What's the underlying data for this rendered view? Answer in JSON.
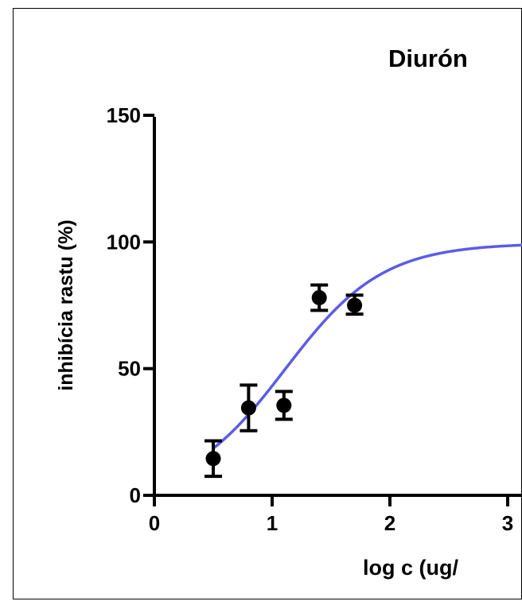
{
  "chart_data": {
    "type": "scatter",
    "title": "Diurón",
    "xlabel": "log c (ug/",
    "ylabel": "inhibícia rastu (%)",
    "xlim": [
      0,
      3
    ],
    "ylim": [
      0,
      150
    ],
    "xticks": [
      "0",
      "1",
      "2",
      "3"
    ],
    "yticks": [
      "0",
      "50",
      "100",
      "150"
    ],
    "grid": false,
    "legend": "none",
    "points": [
      {
        "x": 0.5,
        "y": 14.5,
        "err_low": 7.5,
        "err_high": 21.5
      },
      {
        "x": 0.8,
        "y": 34.5,
        "err_low": 25.5,
        "err_high": 43.5
      },
      {
        "x": 1.1,
        "y": 35.5,
        "err_low": 30.0,
        "err_high": 41.0
      },
      {
        "x": 1.4,
        "y": 78.0,
        "err_low": 73.0,
        "err_high": 83.0
      },
      {
        "x": 1.7,
        "y": 75.0,
        "err_low": 71.5,
        "err_high": 79.0
      }
    ],
    "fit_curve": {
      "model": "sigmoid",
      "bottom": 0,
      "top": 99.5,
      "logEC50": 1.11,
      "hillslope": 1.05,
      "x_start": 0.5,
      "color": "#5c5ce6"
    },
    "colors": {
      "points": "#000000",
      "axis": "#000000",
      "curve": "#5c5ce6"
    }
  }
}
